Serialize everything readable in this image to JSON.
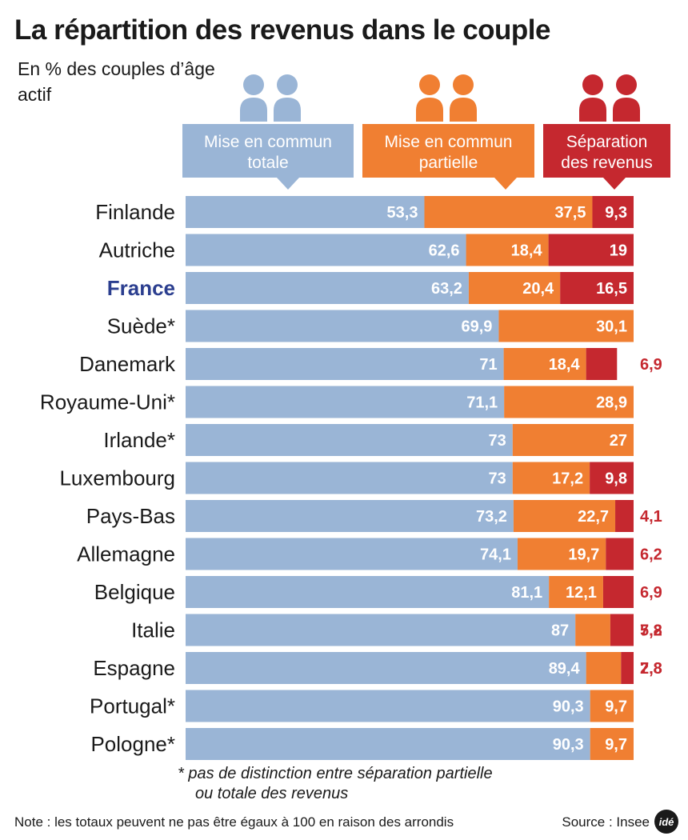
{
  "title": "La répartition des revenus dans le couple",
  "subtitle": "En % des couples d’âge actif",
  "colors": {
    "blue": "#9ab5d6",
    "orange": "#f07f32",
    "red": "#c5282f",
    "highlight": "#2b3e8f"
  },
  "legend": [
    {
      "lines": [
        "Mise en commun",
        "totale"
      ],
      "color": "#9ab5d6",
      "icon": "couple-icon"
    },
    {
      "lines": [
        "Mise en commun",
        "partielle"
      ],
      "color": "#f07f32",
      "icon": "couple-icon"
    },
    {
      "lines": [
        "Séparation",
        "des revenus"
      ],
      "color": "#c5282f",
      "icon": "couple-icon"
    }
  ],
  "chart_data": {
    "type": "bar",
    "orientation": "horizontal",
    "stacked": true,
    "unit": "%",
    "categories": [
      "Finlande",
      "Autriche",
      "France",
      "Suède*",
      "Danemark",
      "Royaume-Uni*",
      "Irlande*",
      "Luxembourg",
      "Pays-Bas",
      "Allemagne",
      "Belgique",
      "Italie",
      "Espagne",
      "Portugal*",
      "Pologne*"
    ],
    "highlight": "France",
    "series": [
      {
        "name": "Mise en commun totale",
        "color": "#9ab5d6",
        "values": [
          53.3,
          62.6,
          63.2,
          69.9,
          71,
          71.1,
          73,
          73,
          73.2,
          74.1,
          81.1,
          87,
          89.4,
          90.3,
          90.3
        ],
        "labels": [
          "53,3",
          "62,6",
          "63,2",
          "69,9",
          "71",
          "71,1",
          "73",
          "73",
          "73,2",
          "74,1",
          "81,1",
          "87",
          "89,4",
          "90,3",
          "90,3"
        ]
      },
      {
        "name": "Mise en commun partielle",
        "color": "#f07f32",
        "values": [
          37.5,
          18.4,
          20.4,
          30.1,
          18.4,
          28.9,
          27,
          17.2,
          22.7,
          19.7,
          12.1,
          7.8,
          7.8,
          9.7,
          9.7
        ],
        "labels": [
          "37,5",
          "18,4",
          "20,4",
          "30,1",
          "18,4",
          "28,9",
          "27",
          "17,2",
          "22,7",
          "19,7",
          "12,1",
          "7,8",
          "7,8",
          "9,7",
          "9,7"
        ]
      },
      {
        "name": "Séparation des revenus",
        "color": "#c5282f",
        "values": [
          9.3,
          19,
          16.5,
          null,
          6.9,
          null,
          null,
          9.8,
          4.1,
          6.2,
          6.9,
          5.2,
          2.8,
          null,
          null
        ],
        "labels": [
          "9,3",
          "19",
          "16,5",
          "",
          "6,9",
          "",
          "",
          "9,8",
          "4,1",
          "6,2",
          "6,9",
          "5,2",
          "2,8",
          "",
          ""
        ]
      }
    ],
    "xlim": [
      0,
      100
    ]
  },
  "footnote": {
    "line1": "* pas de distinction entre séparation partielle",
    "line2": "ou totale des revenus"
  },
  "note": "Note : les totaux peuvent ne pas être égaux à 100 en raison des arrondis",
  "source": "Source : Insee",
  "logo": "idé"
}
